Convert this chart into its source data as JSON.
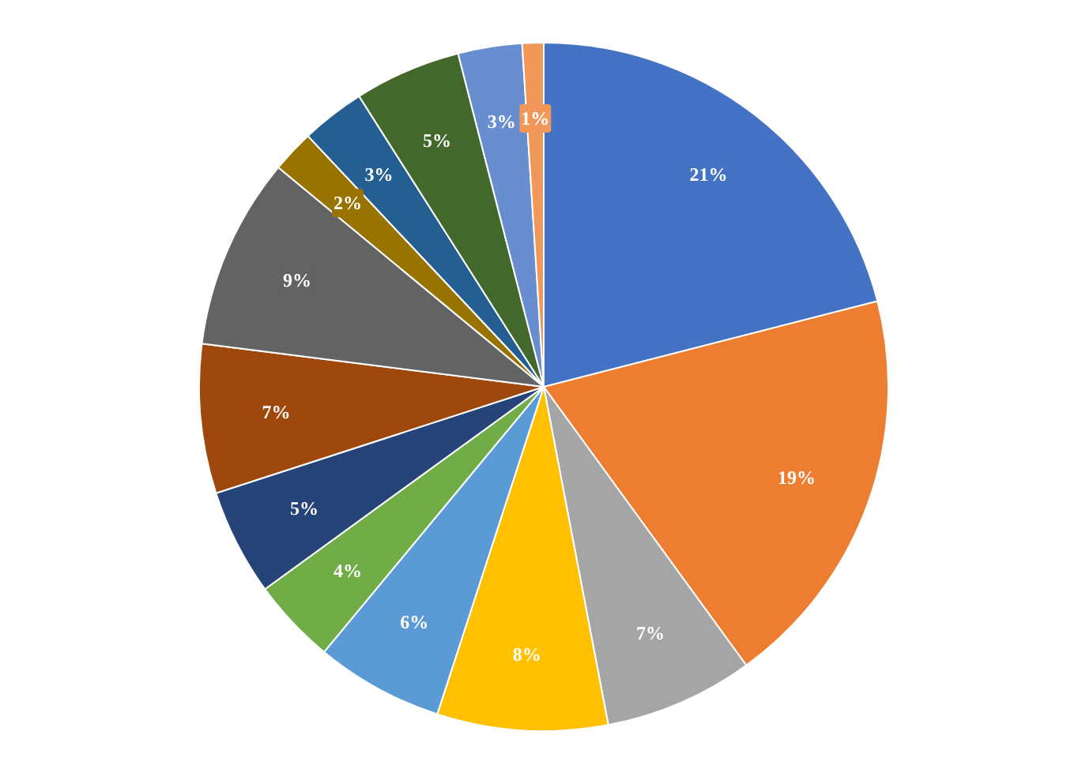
{
  "chart_data": {
    "type": "pie",
    "categories": [
      null,
      null,
      null,
      null,
      null,
      null,
      null,
      null,
      null,
      null,
      null,
      null,
      null,
      null
    ],
    "values": [
      21,
      19,
      7,
      8,
      6,
      4,
      5,
      7,
      9,
      2,
      3,
      5,
      3,
      1
    ],
    "colors": [
      "#4472c4",
      "#ed7d31",
      "#a5a5a5",
      "#ffc000",
      "#5b9bd5",
      "#70ad47",
      "#264478",
      "#9e480e",
      "#636363",
      "#997300",
      "#255e91",
      "#43682b",
      "#698ed0",
      "#f1975a"
    ],
    "value_labels": [
      "21%",
      "19%",
      "7%",
      "8%",
      "6%",
      "4%",
      "5%",
      "7%",
      "9%",
      "2%",
      "3%",
      "5%",
      "3%",
      "1%"
    ],
    "legend": false
  }
}
